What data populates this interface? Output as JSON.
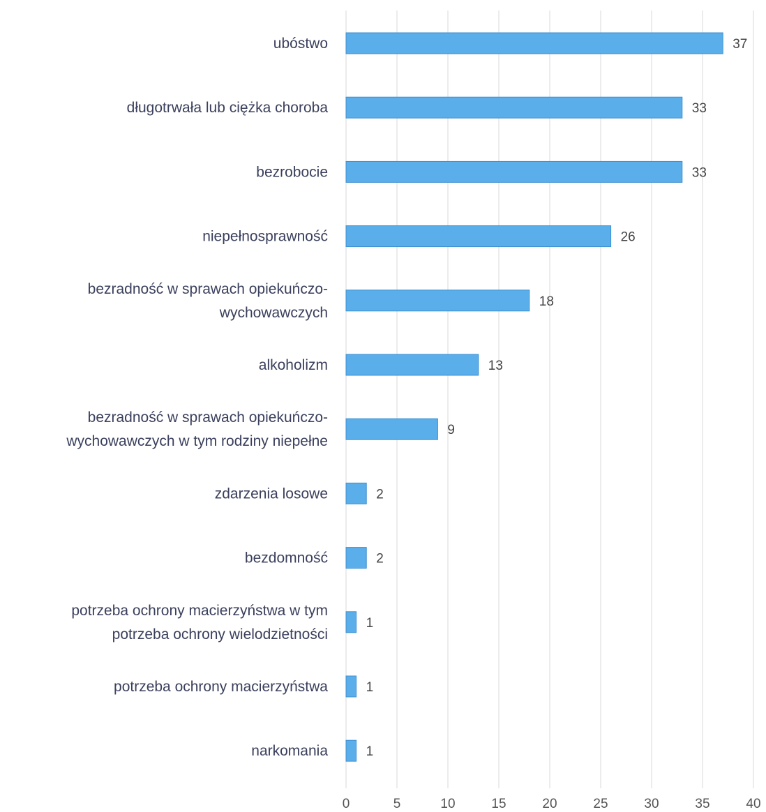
{
  "chart_data": {
    "type": "bar",
    "orientation": "horizontal",
    "title": "",
    "xlabel": "",
    "ylabel": "",
    "categories": [
      "ubóstwo",
      "długotrwała lub ciężka choroba",
      "bezrobocie",
      "niepełnosprawność",
      "bezradność w sprawach opiekuńczo-wychowawczych",
      "alkoholizm",
      "bezradność w sprawach opiekuńczo-wychowawczych w tym rodziny niepełne",
      "zdarzenia losowe",
      "bezdomność",
      "potrzeba ochrony macierzyństwa w tym potrzeba ochrony wielodzietności",
      "potrzeba ochrony macierzyństwa",
      "narkomania"
    ],
    "category_lines": [
      [
        "ubóstwo"
      ],
      [
        "długotrwała lub ciężka choroba"
      ],
      [
        "bezrobocie"
      ],
      [
        "niepełnosprawność"
      ],
      [
        "bezradność w sprawach opiekuńczo-",
        "wychowawczych"
      ],
      [
        "alkoholizm"
      ],
      [
        "bezradność w sprawach opiekuńczo-",
        "wychowawczych w tym rodziny  niepełne"
      ],
      [
        "zdarzenia losowe"
      ],
      [
        "bezdomność"
      ],
      [
        "potrzeba ochrony macierzyństwa w tym",
        "potrzeba ochrony wielodzietności"
      ],
      [
        "potrzeba ochrony macierzyństwa"
      ],
      [
        "narkomania"
      ]
    ],
    "values": [
      37,
      33,
      33,
      26,
      18,
      13,
      9,
      2,
      2,
      1,
      1,
      1
    ],
    "xlim": [
      0,
      40
    ],
    "ticks": [
      0,
      5,
      10,
      15,
      20,
      25,
      30,
      35,
      40
    ],
    "grid": true,
    "legend": "none",
    "bar_color": "#5aaeea",
    "bar_edge_color": "#3d8fd0"
  }
}
